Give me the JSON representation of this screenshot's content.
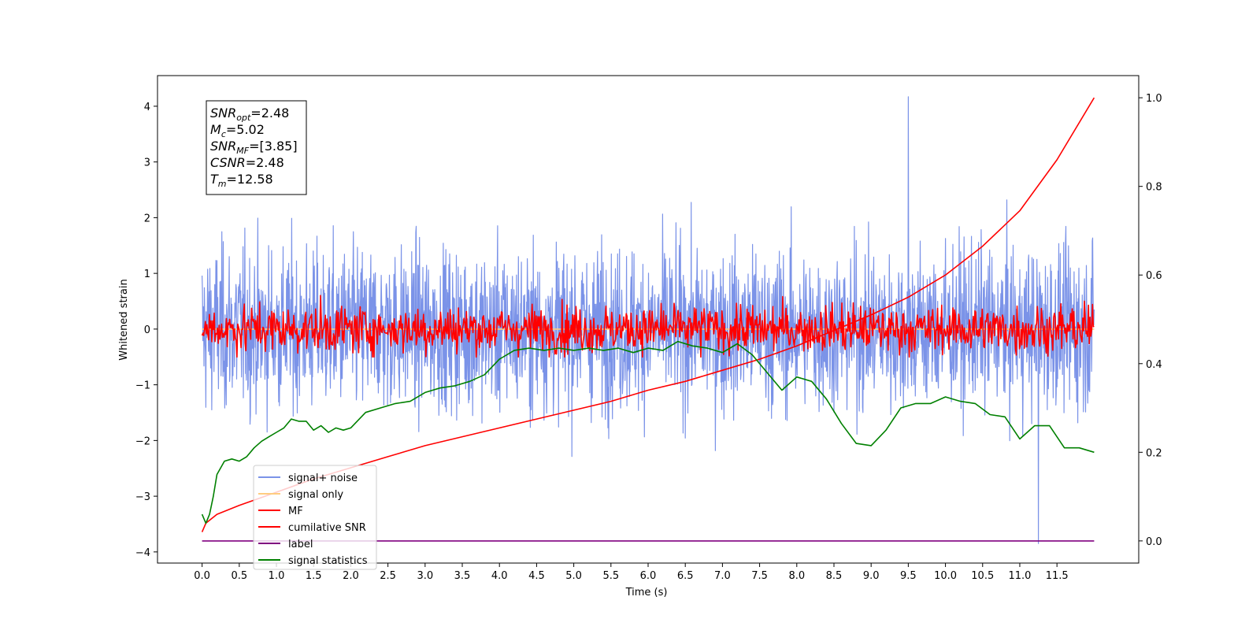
{
  "chart_data": {
    "type": "line",
    "xlabel": "Time (s)",
    "ylabel": "Whitened strain",
    "xlim": [
      -0.6,
      12.6
    ],
    "ylim_left": [
      -4.2,
      4.55
    ],
    "ylim_right": [
      -0.05,
      1.05
    ],
    "x_ticks": [
      "0.0",
      "0.5",
      "1.0",
      "1.5",
      "2.0",
      "2.5",
      "3.0",
      "3.5",
      "4.0",
      "4.5",
      "5.0",
      "5.5",
      "6.0",
      "6.5",
      "7.0",
      "7.5",
      "8.0",
      "8.5",
      "9.0",
      "9.5",
      "10.0",
      "10.5",
      "11.0",
      "11.5"
    ],
    "y_ticks_left": [
      "−4",
      "−3",
      "−2",
      "−1",
      "0",
      "1",
      "2",
      "3",
      "4"
    ],
    "y_ticks_right": [
      "0.0",
      "0.2",
      "0.4",
      "0.6",
      "0.8",
      "1.0"
    ],
    "legend_position": "lower-left",
    "stats_box": [
      {
        "sym": "SNR",
        "sub": "opt",
        "val": "=2.48"
      },
      {
        "sym": "M",
        "sub": "c",
        "val": "=5.02"
      },
      {
        "sym": "SNR",
        "sub": "MF",
        "val": "=[3.85]"
      },
      {
        "sym": "CSNR",
        "sub": "",
        "val": "=2.48"
      },
      {
        "sym": "T",
        "sub": "m",
        "val": "=12.58"
      }
    ],
    "series": [
      {
        "name": "signal+ noise",
        "color": "#7b93e8",
        "axis": "left",
        "kind": "noise",
        "x_range": [
          0,
          12
        ],
        "amplitude_std": 0.85,
        "peak_max": 4.17,
        "peak_min": -3.85
      },
      {
        "name": "signal only",
        "color": "#ffcc80",
        "axis": "left",
        "kind": "flat",
        "x": [
          0,
          12
        ],
        "y": [
          0.0,
          0.0
        ]
      },
      {
        "name": "MF",
        "color": "#ff0000",
        "axis": "left",
        "kind": "noise",
        "x_range": [
          0,
          12
        ],
        "amplitude_std": 0.25,
        "peak_max": 0.9,
        "peak_min": -0.5
      },
      {
        "name": "cumilative SNR",
        "color": "#ff0000",
        "axis": "right",
        "x": [
          0,
          0.05,
          0.2,
          0.5,
          1.0,
          1.5,
          2.0,
          2.5,
          3.0,
          3.5,
          4.0,
          4.5,
          5.0,
          5.5,
          6.0,
          6.5,
          7.0,
          7.5,
          8.0,
          8.5,
          9.0,
          9.5,
          10.0,
          10.5,
          11.0,
          11.5,
          12.0
        ],
        "y": [
          0.02,
          0.04,
          0.06,
          0.08,
          0.11,
          0.14,
          0.165,
          0.19,
          0.215,
          0.235,
          0.255,
          0.275,
          0.295,
          0.315,
          0.34,
          0.36,
          0.385,
          0.41,
          0.44,
          0.475,
          0.51,
          0.55,
          0.6,
          0.665,
          0.745,
          0.86,
          1.0
        ]
      },
      {
        "name": "label",
        "color": "#800080",
        "axis": "right",
        "x": [
          0,
          12
        ],
        "y": [
          0.0,
          0.0
        ]
      },
      {
        "name": "signal statistics",
        "color": "#008000",
        "axis": "right",
        "x": [
          0,
          0.05,
          0.1,
          0.15,
          0.2,
          0.3,
          0.4,
          0.5,
          0.6,
          0.7,
          0.8,
          0.9,
          1.0,
          1.1,
          1.2,
          1.3,
          1.4,
          1.5,
          1.6,
          1.7,
          1.8,
          1.9,
          2.0,
          2.2,
          2.4,
          2.6,
          2.8,
          3.0,
          3.2,
          3.4,
          3.6,
          3.8,
          4.0,
          4.2,
          4.4,
          4.6,
          4.8,
          5.0,
          5.2,
          5.4,
          5.6,
          5.8,
          6.0,
          6.2,
          6.4,
          6.6,
          6.8,
          7.0,
          7.2,
          7.4,
          7.6,
          7.8,
          8.0,
          8.2,
          8.4,
          8.6,
          8.8,
          9.0,
          9.2,
          9.4,
          9.6,
          9.8,
          10.0,
          10.2,
          10.4,
          10.6,
          10.8,
          11.0,
          11.2,
          11.4,
          11.6,
          11.8,
          12.0
        ],
        "y": [
          0.06,
          0.04,
          0.06,
          0.1,
          0.15,
          0.18,
          0.185,
          0.18,
          0.19,
          0.21,
          0.225,
          0.235,
          0.245,
          0.255,
          0.275,
          0.27,
          0.27,
          0.25,
          0.26,
          0.245,
          0.255,
          0.25,
          0.255,
          0.29,
          0.3,
          0.31,
          0.315,
          0.335,
          0.345,
          0.35,
          0.36,
          0.375,
          0.41,
          0.43,
          0.435,
          0.43,
          0.435,
          0.43,
          0.435,
          0.43,
          0.435,
          0.425,
          0.435,
          0.43,
          0.45,
          0.44,
          0.435,
          0.425,
          0.445,
          0.42,
          0.38,
          0.34,
          0.37,
          0.36,
          0.32,
          0.265,
          0.22,
          0.215,
          0.25,
          0.3,
          0.31,
          0.31,
          0.325,
          0.315,
          0.31,
          0.285,
          0.28,
          0.23,
          0.26,
          0.26,
          0.21,
          0.21,
          0.2
        ]
      }
    ]
  }
}
